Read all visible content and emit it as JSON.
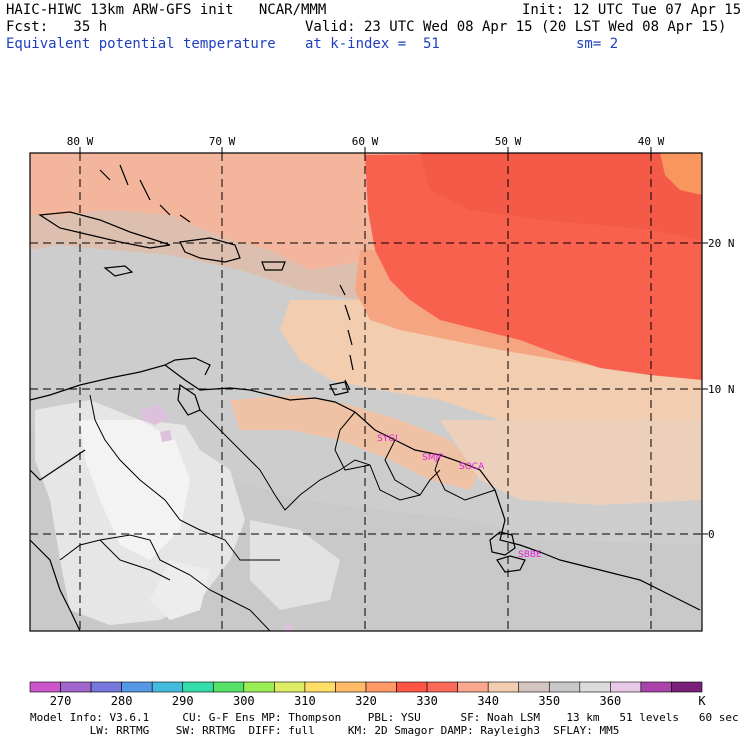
{
  "header": {
    "title": "HAIC-HIWC 13km ARW-GFS init   NCAR/MMM",
    "init": "Init: 12 UTC Tue 07 Apr 15",
    "fcst": "Fcst:   35 h",
    "valid": "Valid: 23 UTC Wed 08 Apr 15 (20 LST Wed 08 Apr 15)",
    "field": "Equivalent potential temperature",
    "level": "at k-index =  51",
    "smooth": "sm= 2"
  },
  "map": {
    "lon_labels": [
      "80 W",
      "70 W",
      "60 W",
      "50 W",
      "40 W"
    ],
    "lat_labels": [
      "20 N",
      "10 N",
      "0"
    ],
    "stations": [
      "SYGI",
      "SMJP",
      "SOCA",
      "SBBE"
    ]
  },
  "colorbar": {
    "labels": [
      "270",
      "280",
      "290",
      "300",
      "310",
      "320",
      "330",
      "340",
      "350",
      "360",
      "K"
    ],
    "colors": [
      "#cc55cc",
      "#a066cc",
      "#7777dd",
      "#5599e6",
      "#44bbdd",
      "#33ddaa",
      "#55e066",
      "#99ee55",
      "#ddee66",
      "#ffdd66",
      "#ffbb66",
      "#ff9966",
      "#ff5544",
      "#fb6a58",
      "#f9a88e",
      "#f2cdb0",
      "#d5c5bf",
      "#c8c8c8",
      "#dcdcdc",
      "#e8c9e8",
      "#aa44aa",
      "#7a1f7a"
    ]
  },
  "footer": {
    "line1": "Model Info: V3.6.1     CU: G-F Ens MP: Thompson    PBL: YSU      SF: Noah LSM    13 km   51 levels   60 sec",
    "line2": "         LW: RRTMG    SW: RRTMG  DIFF: full     KM: 2D Smagor DAMP: Rayleigh3  SFLAY: MM5"
  }
}
